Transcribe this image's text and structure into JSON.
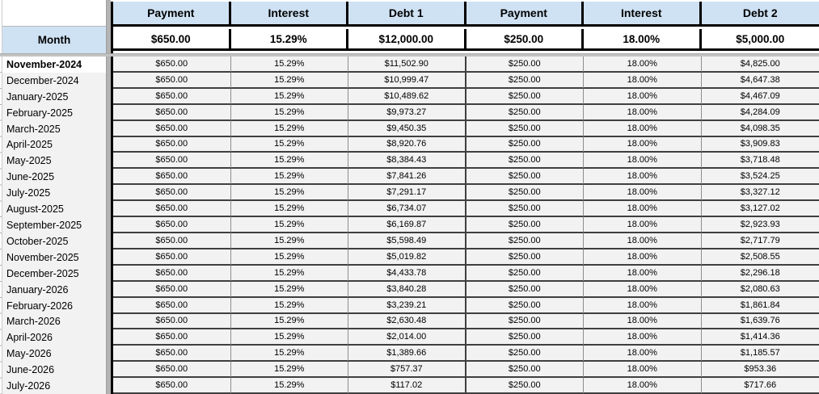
{
  "sheet": {
    "corner_label": "Month",
    "columns": [
      "Payment",
      "Interest",
      "Debt 1",
      "Payment",
      "Interest",
      "Debt 2"
    ],
    "setup_row": [
      "$650.00",
      "15.29%",
      "$12,000.00",
      "$250.00",
      "18.00%",
      "$5,000.00"
    ],
    "selected_row": "November-2024",
    "rows": [
      {
        "month": "November-2024",
        "values": [
          "$650.00",
          "15.29%",
          "$11,502.90",
          "$250.00",
          "18.00%",
          "$4,825.00"
        ]
      },
      {
        "month": "December-2024",
        "values": [
          "$650.00",
          "15.29%",
          "$10,999.47",
          "$250.00",
          "18.00%",
          "$4,647.38"
        ]
      },
      {
        "month": "January-2025",
        "values": [
          "$650.00",
          "15.29%",
          "$10,489.62",
          "$250.00",
          "18.00%",
          "$4,467.09"
        ]
      },
      {
        "month": "February-2025",
        "values": [
          "$650.00",
          "15.29%",
          "$9,973.27",
          "$250.00",
          "18.00%",
          "$4,284.09"
        ]
      },
      {
        "month": "March-2025",
        "values": [
          "$650.00",
          "15.29%",
          "$9,450.35",
          "$250.00",
          "18.00%",
          "$4,098.35"
        ]
      },
      {
        "month": "April-2025",
        "values": [
          "$650.00",
          "15.29%",
          "$8,920.76",
          "$250.00",
          "18.00%",
          "$3,909.83"
        ]
      },
      {
        "month": "May-2025",
        "values": [
          "$650.00",
          "15.29%",
          "$8,384.43",
          "$250.00",
          "18.00%",
          "$3,718.48"
        ]
      },
      {
        "month": "June-2025",
        "values": [
          "$650.00",
          "15.29%",
          "$7,841.26",
          "$250.00",
          "18.00%",
          "$3,524.25"
        ]
      },
      {
        "month": "July-2025",
        "values": [
          "$650.00",
          "15.29%",
          "$7,291.17",
          "$250.00",
          "18.00%",
          "$3,327.12"
        ]
      },
      {
        "month": "August-2025",
        "values": [
          "$650.00",
          "15.29%",
          "$6,734.07",
          "$250.00",
          "18.00%",
          "$3,127.02"
        ]
      },
      {
        "month": "September-2025",
        "values": [
          "$650.00",
          "15.29%",
          "$6,169.87",
          "$250.00",
          "18.00%",
          "$2,923.93"
        ]
      },
      {
        "month": "October-2025",
        "values": [
          "$650.00",
          "15.29%",
          "$5,598.49",
          "$250.00",
          "18.00%",
          "$2,717.79"
        ]
      },
      {
        "month": "November-2025",
        "values": [
          "$650.00",
          "15.29%",
          "$5,019.82",
          "$250.00",
          "18.00%",
          "$2,508.55"
        ]
      },
      {
        "month": "December-2025",
        "values": [
          "$650.00",
          "15.29%",
          "$4,433.78",
          "$250.00",
          "18.00%",
          "$2,296.18"
        ]
      },
      {
        "month": "January-2026",
        "values": [
          "$650.00",
          "15.29%",
          "$3,840.28",
          "$250.00",
          "18.00%",
          "$2,080.63"
        ]
      },
      {
        "month": "February-2026",
        "values": [
          "$650.00",
          "15.29%",
          "$3,239.21",
          "$250.00",
          "18.00%",
          "$1,861.84"
        ]
      },
      {
        "month": "March-2026",
        "values": [
          "$650.00",
          "15.29%",
          "$2,630.48",
          "$250.00",
          "18.00%",
          "$1,639.76"
        ]
      },
      {
        "month": "April-2026",
        "values": [
          "$650.00",
          "15.29%",
          "$2,014.00",
          "$250.00",
          "18.00%",
          "$1,414.36"
        ]
      },
      {
        "month": "May-2026",
        "values": [
          "$650.00",
          "15.29%",
          "$1,389.66",
          "$250.00",
          "18.00%",
          "$1,185.57"
        ]
      },
      {
        "month": "June-2026",
        "values": [
          "$650.00",
          "15.29%",
          "$757.37",
          "$250.00",
          "18.00%",
          "$953.36"
        ]
      },
      {
        "month": "July-2026",
        "values": [
          "$650.00",
          "15.29%",
          "$117.02",
          "$250.00",
          "18.00%",
          "$717.66"
        ]
      }
    ],
    "colors": {
      "header_blue": "#cfe2f3",
      "row_grey": "#f2f2f2",
      "selected_white": "#ffffff",
      "divider_grey": "#b3b3b3",
      "border_black": "#000000",
      "row_border": "#3f3f3f",
      "gridline_grey": "#8e8e8e"
    }
  }
}
